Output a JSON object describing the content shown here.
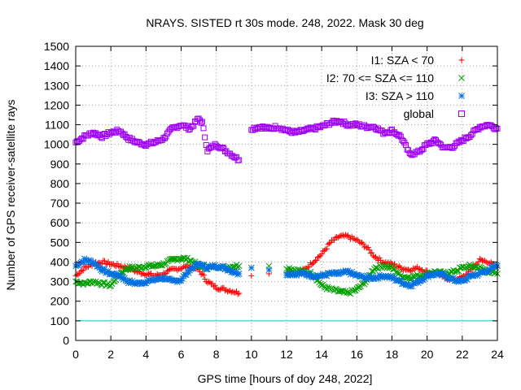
{
  "chart_data": {
    "type": "scatter",
    "title": "NRAYS. SISTED rt 30s mode. 248, 2022. Mask 30 deg",
    "xlabel": "GPS time [hours of doy 248, 2022]",
    "ylabel": "Number of GPS receiver-satellite rays",
    "xlim": [
      0,
      24
    ],
    "ylim": [
      0,
      1500
    ],
    "xticks": [
      0,
      2,
      4,
      6,
      8,
      10,
      12,
      14,
      16,
      18,
      20,
      22,
      24
    ],
    "yticks": [
      0,
      100,
      200,
      300,
      400,
      500,
      600,
      700,
      800,
      900,
      1000,
      1100,
      1200,
      1300,
      1400,
      1500
    ],
    "grid": true,
    "legend_position": "top-right",
    "threshold_line": {
      "y": 100,
      "color": "#00c8e0"
    },
    "series": [
      {
        "name": "I1: SZA < 70",
        "marker": "+",
        "color": "#ff0000",
        "points": [
          [
            0,
            330
          ],
          [
            0.5,
            370
          ],
          [
            1,
            390
          ],
          [
            1.5,
            400
          ],
          [
            2,
            390
          ],
          [
            2.5,
            380
          ],
          [
            3,
            370
          ],
          [
            3.5,
            350
          ],
          [
            4,
            340
          ],
          [
            4.5,
            330
          ],
          [
            5,
            340
          ],
          [
            5.5,
            360
          ],
          [
            6,
            370
          ],
          [
            6.5,
            380
          ],
          [
            7,
            360
          ],
          [
            7.5,
            300
          ],
          [
            8,
            270
          ],
          [
            8.5,
            260
          ],
          [
            9,
            250
          ],
          [
            9.3,
            240
          ],
          [
            10,
            330
          ],
          [
            11,
            340
          ],
          [
            12,
            350
          ],
          [
            12.5,
            340
          ],
          [
            13,
            360
          ],
          [
            13.5,
            400
          ],
          [
            14,
            440
          ],
          [
            14.5,
            500
          ],
          [
            15,
            530
          ],
          [
            15.5,
            530
          ],
          [
            16,
            510
          ],
          [
            16.5,
            480
          ],
          [
            17,
            430
          ],
          [
            17.5,
            400
          ],
          [
            18,
            390
          ],
          [
            18.5,
            370
          ],
          [
            19,
            360
          ],
          [
            19.5,
            370
          ],
          [
            20,
            350
          ],
          [
            20.5,
            340
          ],
          [
            21,
            320
          ],
          [
            21.5,
            310
          ],
          [
            22,
            320
          ],
          [
            22.5,
            360
          ],
          [
            23,
            410
          ],
          [
            23.5,
            400
          ],
          [
            24,
            370
          ]
        ]
      },
      {
        "name": "I2: 70 <= SZA <= 110",
        "marker": "x",
        "color": "#00a000",
        "points": [
          [
            0,
            300
          ],
          [
            0.5,
            290
          ],
          [
            1,
            300
          ],
          [
            1.5,
            290
          ],
          [
            2,
            280
          ],
          [
            2.5,
            340
          ],
          [
            3,
            370
          ],
          [
            3.5,
            370
          ],
          [
            4,
            380
          ],
          [
            4.5,
            380
          ],
          [
            5,
            390
          ],
          [
            5.5,
            410
          ],
          [
            6,
            420
          ],
          [
            6.5,
            410
          ],
          [
            7,
            380
          ],
          [
            7.5,
            370
          ],
          [
            8,
            380
          ],
          [
            8.5,
            370
          ],
          [
            9,
            380
          ],
          [
            9.3,
            380
          ],
          [
            10,
            370
          ],
          [
            11,
            380
          ],
          [
            12,
            370
          ],
          [
            12.5,
            360
          ],
          [
            13,
            350
          ],
          [
            13.5,
            340
          ],
          [
            14,
            280
          ],
          [
            14.5,
            260
          ],
          [
            15,
            250
          ],
          [
            15.5,
            240
          ],
          [
            16,
            260
          ],
          [
            16.5,
            300
          ],
          [
            17,
            370
          ],
          [
            17.5,
            380
          ],
          [
            18,
            370
          ],
          [
            18.5,
            330
          ],
          [
            19,
            320
          ],
          [
            19.5,
            330
          ],
          [
            20,
            340
          ],
          [
            20.5,
            350
          ],
          [
            21,
            340
          ],
          [
            21.5,
            350
          ],
          [
            22,
            370
          ],
          [
            22.5,
            380
          ],
          [
            23,
            370
          ],
          [
            23.5,
            350
          ],
          [
            24,
            340
          ]
        ]
      },
      {
        "name": "I3: SZA > 110",
        "marker": "*",
        "color": "#0070e0",
        "points": [
          [
            0,
            380
          ],
          [
            0.5,
            410
          ],
          [
            1,
            400
          ],
          [
            1.5,
            360
          ],
          [
            2,
            340
          ],
          [
            2.5,
            330
          ],
          [
            3,
            300
          ],
          [
            3.5,
            290
          ],
          [
            4,
            300
          ],
          [
            4.5,
            310
          ],
          [
            5,
            320
          ],
          [
            5.5,
            300
          ],
          [
            6,
            310
          ],
          [
            6.5,
            360
          ],
          [
            7,
            390
          ],
          [
            7.5,
            370
          ],
          [
            8,
            380
          ],
          [
            8.5,
            370
          ],
          [
            9,
            350
          ],
          [
            9.3,
            340
          ],
          [
            10,
            370
          ],
          [
            11,
            360
          ],
          [
            12,
            340
          ],
          [
            12.5,
            340
          ],
          [
            13,
            340
          ],
          [
            13.5,
            330
          ],
          [
            14,
            330
          ],
          [
            14.5,
            340
          ],
          [
            15,
            340
          ],
          [
            15.5,
            350
          ],
          [
            16,
            330
          ],
          [
            16.5,
            320
          ],
          [
            17,
            320
          ],
          [
            17.5,
            330
          ],
          [
            18,
            320
          ],
          [
            18.5,
            300
          ],
          [
            19,
            280
          ],
          [
            19.5,
            300
          ],
          [
            20,
            330
          ],
          [
            20.5,
            340
          ],
          [
            21,
            330
          ],
          [
            21.5,
            310
          ],
          [
            22,
            300
          ],
          [
            22.5,
            330
          ],
          [
            23,
            340
          ],
          [
            23.5,
            360
          ],
          [
            24,
            380
          ]
        ]
      },
      {
        "name": "global",
        "marker": "square",
        "color": "#a000f0",
        "points": [
          [
            0,
            1010
          ],
          [
            0.5,
            1040
          ],
          [
            1,
            1060
          ],
          [
            1.5,
            1040
          ],
          [
            2,
            1060
          ],
          [
            2.5,
            1070
          ],
          [
            3,
            1030
          ],
          [
            3.5,
            1010
          ],
          [
            4,
            1000
          ],
          [
            4.5,
            1010
          ],
          [
            5,
            1030
          ],
          [
            5.5,
            1080
          ],
          [
            6,
            1100
          ],
          [
            6.5,
            1080
          ],
          [
            7,
            1130
          ],
          [
            7.2,
            1110
          ],
          [
            7.5,
            970
          ],
          [
            8,
            1000
          ],
          [
            8.5,
            970
          ],
          [
            9,
            940
          ],
          [
            9.3,
            920
          ],
          [
            10,
            1080
          ],
          [
            10.5,
            1090
          ],
          [
            11,
            1080
          ],
          [
            11.5,
            1090
          ],
          [
            12,
            1070
          ],
          [
            12.5,
            1060
          ],
          [
            13,
            1070
          ],
          [
            13.5,
            1080
          ],
          [
            14,
            1090
          ],
          [
            14.5,
            1110
          ],
          [
            15,
            1120
          ],
          [
            15.5,
            1100
          ],
          [
            16,
            1100
          ],
          [
            16.5,
            1090
          ],
          [
            17,
            1090
          ],
          [
            17.5,
            1060
          ],
          [
            18,
            1070
          ],
          [
            18.5,
            1040
          ],
          [
            19,
            950
          ],
          [
            19.5,
            960
          ],
          [
            20,
            1000
          ],
          [
            20.5,
            1020
          ],
          [
            21,
            980
          ],
          [
            21.5,
            990
          ],
          [
            22,
            1020
          ],
          [
            22.5,
            1050
          ],
          [
            23,
            1090
          ],
          [
            23.5,
            1100
          ],
          [
            24,
            1080
          ]
        ]
      }
    ]
  }
}
